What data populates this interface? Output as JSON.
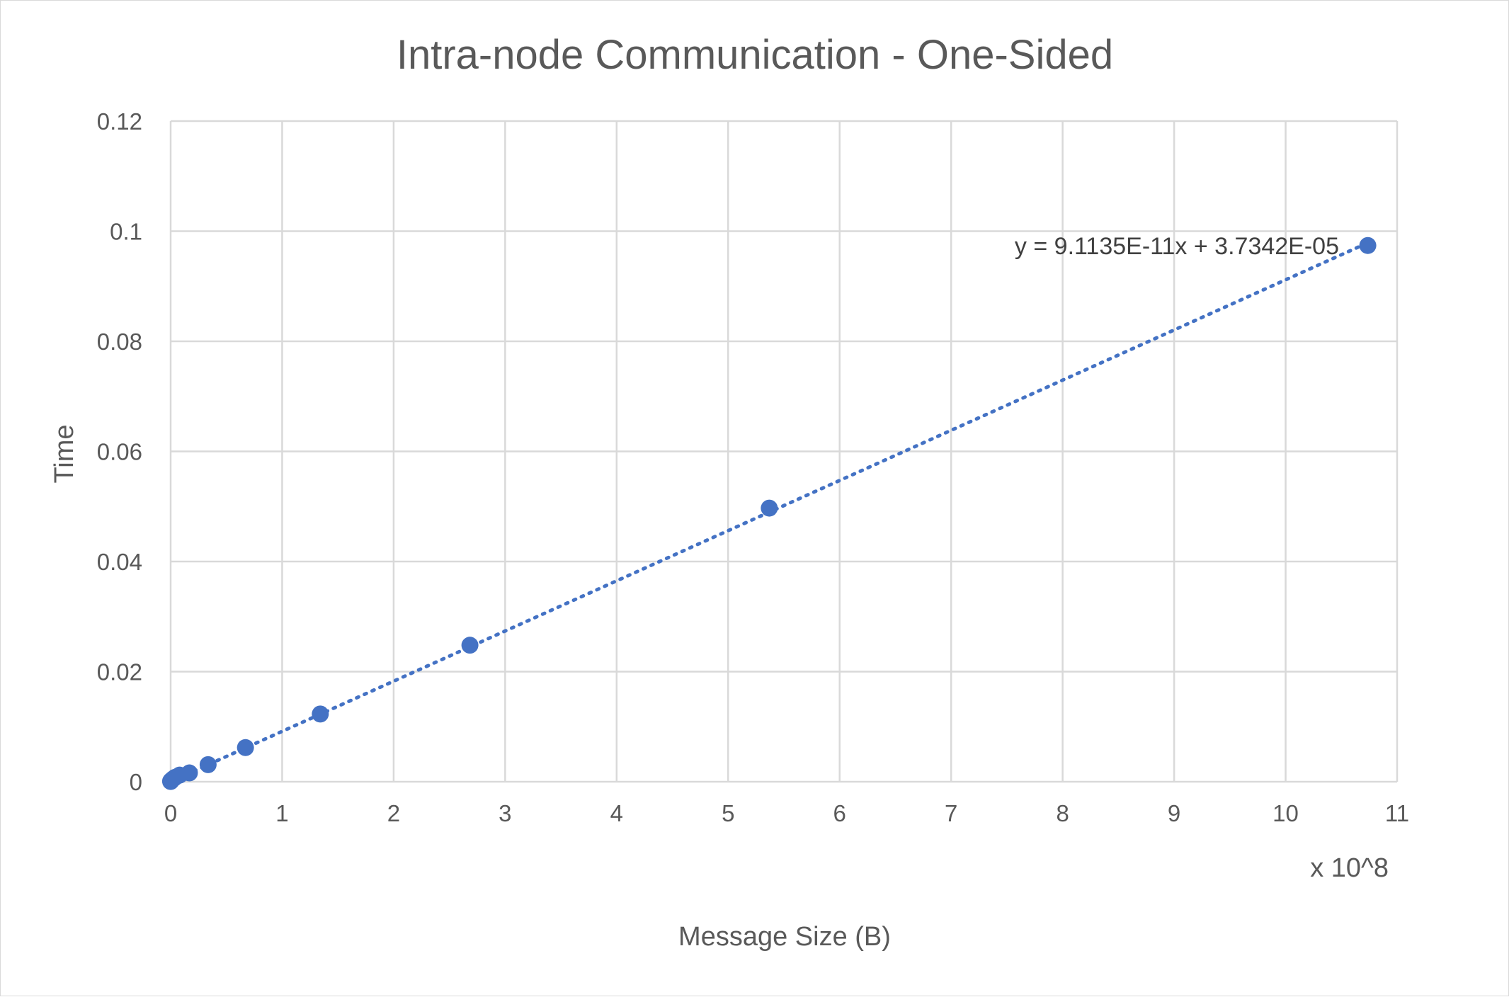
{
  "chart_data": {
    "type": "scatter",
    "title": "Intra-node Communication - One-Sided",
    "xlabel": "Message Size (B)",
    "ylabel": "Time",
    "x_multiplier_label": "x 10^8",
    "xlim": [
      0,
      11
    ],
    "ylim": [
      0,
      0.12
    ],
    "x_ticks": [
      "0",
      "1",
      "2",
      "3",
      "4",
      "5",
      "6",
      "7",
      "8",
      "9",
      "10",
      "11"
    ],
    "y_ticks": [
      "0",
      "0.02",
      "0.04",
      "0.06",
      "0.08",
      "0.1",
      "0.12"
    ],
    "grid": true,
    "legend": "none",
    "series": [
      {
        "color": "#4472c4",
        "x": [
          0.0001,
          0.0005,
          0.001,
          0.005,
          0.01,
          0.02,
          0.04,
          0.08,
          0.168,
          0.336,
          0.671,
          1.342,
          2.684,
          5.369,
          10.737
        ],
        "y": [
          5e-05,
          0.0001,
          0.00015,
          0.0002,
          0.0003,
          0.0005,
          0.0008,
          0.0012,
          0.0016,
          0.0031,
          0.0062,
          0.0123,
          0.0248,
          0.0497,
          0.0974
        ]
      }
    ],
    "trendline": {
      "type": "linear",
      "equation": "y = 9.1135E-11x + 3.7342E-05",
      "slope_per_1e8": 0.0091135,
      "intercept": 3.7342e-05
    }
  }
}
